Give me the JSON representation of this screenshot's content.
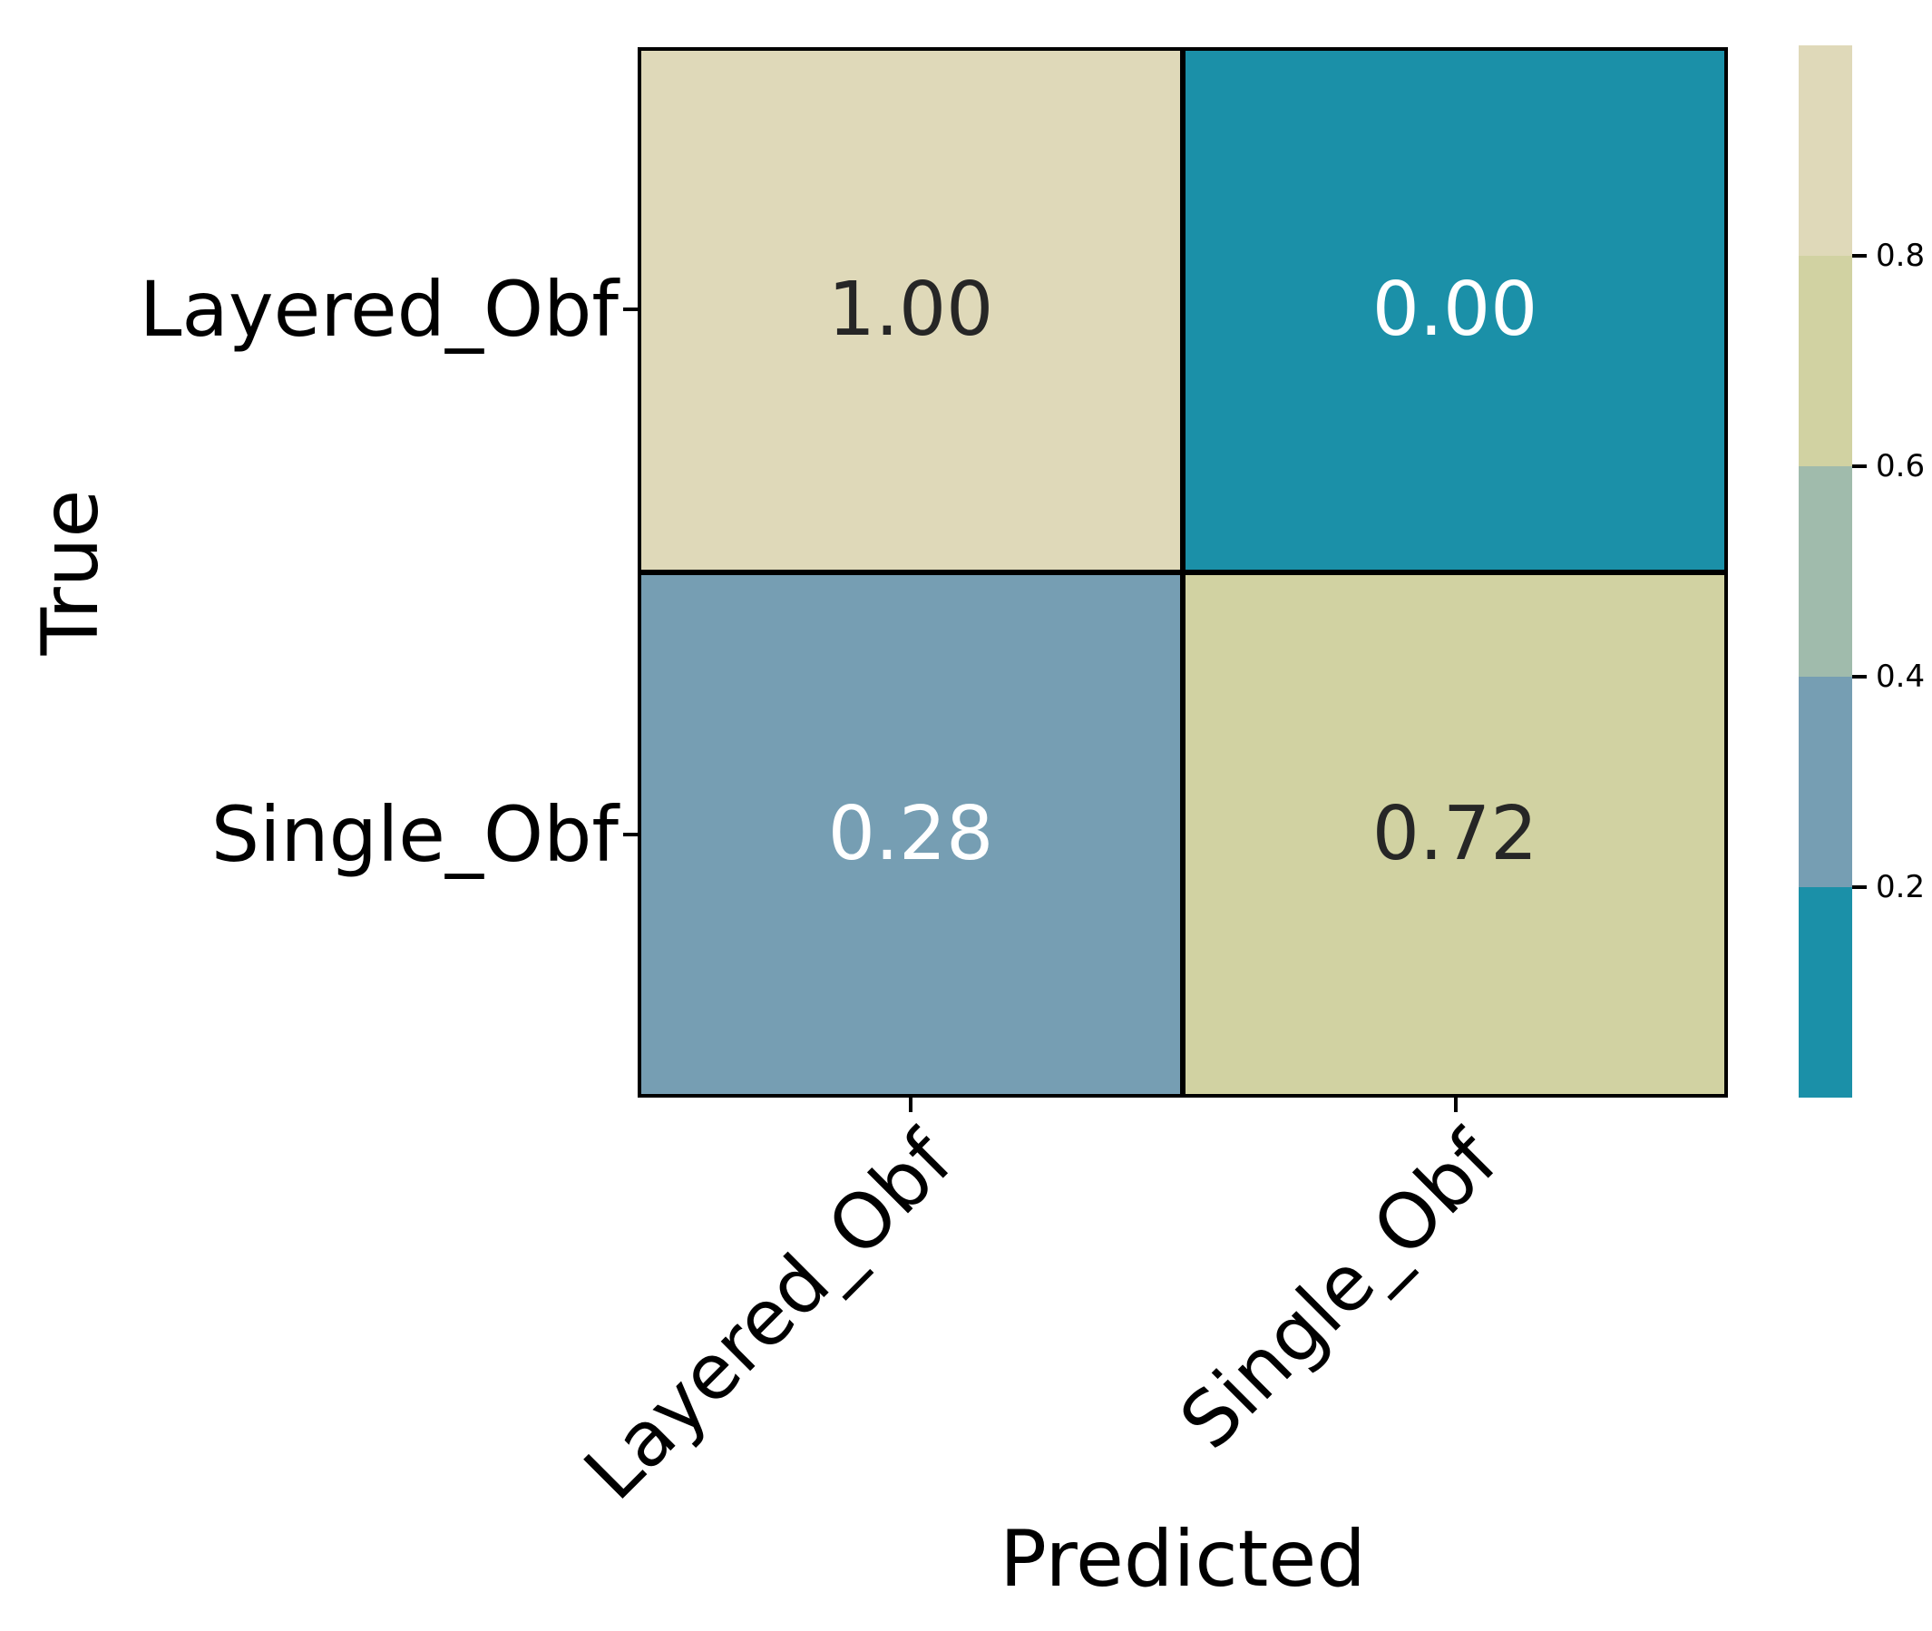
{
  "chart_data": {
    "type": "heatmap",
    "title": "",
    "xlabel": "Predicted",
    "ylabel": "True",
    "x_categories": [
      "Layered_Obf",
      "Single_Obf"
    ],
    "y_categories": [
      "Layered_Obf",
      "Single_Obf"
    ],
    "matrix_values": [
      [
        1.0,
        0.0
      ],
      [
        0.28,
        0.72
      ]
    ],
    "cells": [
      {
        "row": "Layered_Obf",
        "col": "Layered_Obf",
        "value": 1.0,
        "label": "1.00",
        "bg": "#dfd9b9",
        "fg": "#262626"
      },
      {
        "row": "Layered_Obf",
        "col": "Single_Obf",
        "value": 0.0,
        "label": "0.00",
        "bg": "#1b90a8",
        "fg": "#ffffff"
      },
      {
        "row": "Single_Obf",
        "col": "Layered_Obf",
        "value": 0.28,
        "label": "0.28",
        "bg": "#769eb3",
        "fg": "#ffffff"
      },
      {
        "row": "Single_Obf",
        "col": "Single_Obf",
        "value": 0.72,
        "label": "0.72",
        "bg": "#d1d2a2",
        "fg": "#262626"
      }
    ],
    "grid_line_color": "#000000",
    "colorbar": {
      "position": "right",
      "range_min": 0.0,
      "range_max": 1.0,
      "tick_labels": [
        "0.8",
        "0.6",
        "0.4",
        "0.2"
      ],
      "bands_top_to_bottom": [
        "#dfd9b9",
        "#d1d2a2",
        "#a0bbac",
        "#769eb3",
        "#1b90a8"
      ]
    }
  }
}
